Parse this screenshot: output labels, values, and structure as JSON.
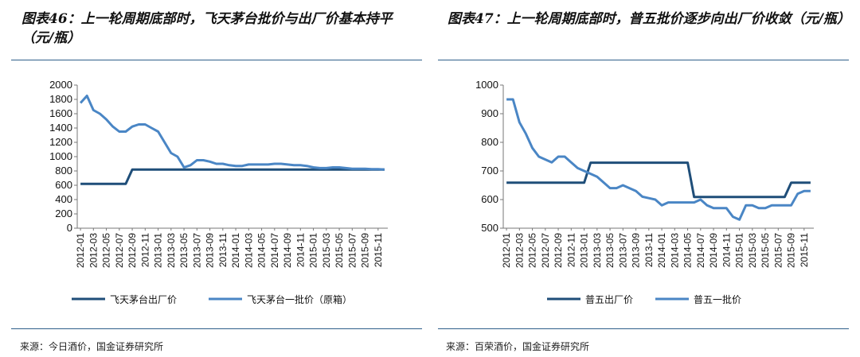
{
  "charts": {
    "left": {
      "title": "图表46：上一轮周期底部时，飞天茅台批价与出厂价基本持平（元/瓶）",
      "source": "来源：今日酒价，国金证券研究所"
    },
    "right": {
      "title": "图表47：上一轮周期底部时，普五批价逐步向出厂价收敛（元/瓶）",
      "source": "来源：百荣酒价，国金证券研究所"
    }
  },
  "chart_data": [
    {
      "type": "line",
      "title": "图表46：上一轮周期底部时，飞天茅台批价与出厂价基本持平（元/瓶）",
      "ylim": [
        0,
        2000
      ],
      "yticks": [
        0,
        200,
        400,
        600,
        800,
        1000,
        1200,
        1400,
        1600,
        1800,
        2000
      ],
      "xtick_labels": [
        "2012-01",
        "2012-03",
        "2012-05",
        "2012-07",
        "2012-09",
        "2012-11",
        "2013-01",
        "2013-03",
        "2013-05",
        "2013-07",
        "2013-09",
        "2013-11",
        "2014-01",
        "2014-03",
        "2014-05",
        "2014-07",
        "2014-09",
        "2014-11",
        "2015-01",
        "2015-03",
        "2015-05",
        "2015-07",
        "2015-09",
        "2015-11"
      ],
      "legend_position": "bottom",
      "colors": {
        "factory": "#1f4e79",
        "wholesale": "#4a86c5"
      },
      "series": [
        {
          "name": "飞天茅台出厂价",
          "x": [
            "2012-01",
            "2012-08",
            "2012-09",
            "2015-12"
          ],
          "values": [
            619,
            619,
            819,
            819
          ]
        },
        {
          "name": "飞天茅台一批价（原箱）",
          "x": [
            "2012-01",
            "2012-02",
            "2012-03",
            "2012-04",
            "2012-05",
            "2012-06",
            "2012-07",
            "2012-08",
            "2012-09",
            "2012-10",
            "2012-11",
            "2012-12",
            "2013-01",
            "2013-02",
            "2013-03",
            "2013-04",
            "2013-05",
            "2013-06",
            "2013-07",
            "2013-08",
            "2013-09",
            "2013-10",
            "2013-11",
            "2013-12",
            "2014-01",
            "2014-02",
            "2014-03",
            "2014-04",
            "2014-05",
            "2014-06",
            "2014-07",
            "2014-08",
            "2014-09",
            "2014-10",
            "2014-11",
            "2014-12",
            "2015-01",
            "2015-02",
            "2015-03",
            "2015-04",
            "2015-05",
            "2015-06",
            "2015-07",
            "2015-08",
            "2015-09",
            "2015-10",
            "2015-11",
            "2015-12"
          ],
          "values": [
            1750,
            1850,
            1650,
            1600,
            1520,
            1420,
            1350,
            1350,
            1420,
            1450,
            1450,
            1400,
            1350,
            1200,
            1050,
            1000,
            850,
            880,
            950,
            950,
            930,
            900,
            900,
            880,
            870,
            870,
            890,
            890,
            890,
            890,
            900,
            900,
            890,
            880,
            880,
            870,
            850,
            840,
            840,
            850,
            850,
            840,
            830,
            830,
            830,
            825,
            825,
            820
          ]
        }
      ]
    },
    {
      "type": "line",
      "title": "图表47：上一轮周期底部时，普五批价逐步向出厂价收敛（元/瓶）",
      "ylim": [
        500,
        1000
      ],
      "yticks": [
        500,
        600,
        700,
        800,
        900,
        1000
      ],
      "xtick_labels": [
        "2012-01",
        "2012-03",
        "2012-05",
        "2012-07",
        "2012-09",
        "2012-11",
        "2013-01",
        "2013-03",
        "2013-05",
        "2013-07",
        "2013-09",
        "2013-11",
        "2014-01",
        "2014-03",
        "2014-05",
        "2014-07",
        "2014-09",
        "2014-11",
        "2015-01",
        "2015-03",
        "2015-05",
        "2015-07",
        "2015-09",
        "2015-11"
      ],
      "legend_position": "bottom",
      "colors": {
        "factory": "#1f4e79",
        "wholesale": "#4a86c5"
      },
      "series": [
        {
          "name": "普五出厂价",
          "x": [
            "2012-01",
            "2013-01",
            "2013-02",
            "2014-05",
            "2014-06",
            "2015-08",
            "2015-09",
            "2015-12"
          ],
          "values": [
            659,
            659,
            729,
            729,
            609,
            609,
            659,
            659
          ]
        },
        {
          "name": "普五一批价",
          "x": [
            "2012-01",
            "2012-02",
            "2012-03",
            "2012-04",
            "2012-05",
            "2012-06",
            "2012-07",
            "2012-08",
            "2012-09",
            "2012-10",
            "2012-11",
            "2012-12",
            "2013-01",
            "2013-02",
            "2013-03",
            "2013-04",
            "2013-05",
            "2013-06",
            "2013-07",
            "2013-08",
            "2013-09",
            "2013-10",
            "2013-11",
            "2013-12",
            "2014-01",
            "2014-02",
            "2014-03",
            "2014-04",
            "2014-05",
            "2014-06",
            "2014-07",
            "2014-08",
            "2014-09",
            "2014-10",
            "2014-11",
            "2014-12",
            "2015-01",
            "2015-02",
            "2015-03",
            "2015-04",
            "2015-05",
            "2015-06",
            "2015-07",
            "2015-08",
            "2015-09",
            "2015-10",
            "2015-11",
            "2015-12"
          ],
          "values": [
            950,
            950,
            870,
            830,
            780,
            750,
            740,
            730,
            750,
            750,
            730,
            710,
            700,
            690,
            680,
            660,
            640,
            640,
            650,
            640,
            630,
            610,
            605,
            600,
            580,
            590,
            590,
            590,
            590,
            590,
            600,
            580,
            570,
            570,
            570,
            540,
            530,
            580,
            580,
            570,
            570,
            580,
            580,
            580,
            580,
            620,
            630,
            630
          ]
        }
      ]
    }
  ]
}
